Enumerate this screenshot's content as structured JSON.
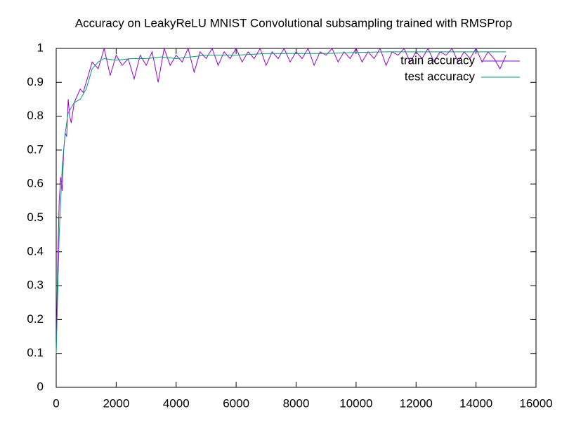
{
  "chart_data": {
    "type": "line",
    "title": "Accuracy on LeakyReLU MNIST Convolutional subsampling trained with RMSProp",
    "xlim": [
      0,
      16000
    ],
    "xticks": [
      0,
      2000,
      4000,
      6000,
      8000,
      10000,
      12000,
      14000,
      16000
    ],
    "ylim": [
      0,
      1
    ],
    "yticks": [
      0,
      0.1,
      0.2,
      0.3,
      0.4,
      0.5,
      0.6,
      0.7,
      0.8,
      0.9,
      1
    ],
    "grid": false,
    "legend": "top-right",
    "series": [
      {
        "name": "train accuracy",
        "color": "#9400d3",
        "x": [
          0,
          50,
          100,
          150,
          200,
          250,
          300,
          350,
          400,
          450,
          500,
          600,
          700,
          800,
          900,
          1000,
          1200,
          1400,
          1600,
          1800,
          2000,
          2200,
          2400,
          2600,
          2800,
          3000,
          3200,
          3400,
          3600,
          3800,
          4000,
          4200,
          4400,
          4600,
          4800,
          5000,
          5200,
          5400,
          5600,
          5800,
          6000,
          6200,
          6400,
          6600,
          6800,
          7000,
          7200,
          7400,
          7600,
          7800,
          8000,
          8200,
          8400,
          8600,
          8800,
          9000,
          9200,
          9400,
          9600,
          9800,
          10000,
          10200,
          10400,
          10600,
          10800,
          11000,
          11200,
          11400,
          11600,
          11800,
          12000,
          12200,
          12400,
          12600,
          12800,
          13000,
          13200,
          13400,
          13600,
          13800,
          14000,
          14200,
          14400,
          14600,
          14800,
          15000
        ],
        "values": [
          0.1,
          0.37,
          0.55,
          0.62,
          0.58,
          0.7,
          0.75,
          0.74,
          0.85,
          0.8,
          0.78,
          0.84,
          0.86,
          0.88,
          0.87,
          0.9,
          0.96,
          0.94,
          1,
          0.92,
          0.98,
          0.95,
          0.97,
          0.91,
          0.98,
          0.95,
          0.99,
          0.9,
          1,
          0.95,
          0.98,
          0.96,
          1,
          0.93,
          0.99,
          0.97,
          1,
          0.95,
          0.99,
          0.97,
          1,
          0.96,
          0.99,
          0.97,
          1,
          0.95,
          0.99,
          0.97,
          1,
          0.96,
          0.99,
          0.97,
          1,
          0.95,
          0.99,
          0.98,
          1,
          0.96,
          0.99,
          0.97,
          1,
          0.96,
          0.99,
          0.97,
          1,
          0.95,
          0.99,
          0.98,
          1,
          0.96,
          0.99,
          0.97,
          1,
          0.96,
          0.99,
          0.98,
          1,
          0.96,
          0.99,
          0.97,
          1,
          0.96,
          0.99,
          0.97,
          0.94,
          0.98
        ]
      },
      {
        "name": "test accuracy",
        "color": "#009e73",
        "x": [
          0,
          100,
          200,
          300,
          400,
          600,
          800,
          1000,
          1200,
          1400,
          1600,
          2000,
          2500,
          3000,
          3500,
          4000,
          5000,
          6000,
          7000,
          8000,
          9000,
          10000,
          11000,
          12000,
          13000,
          14000,
          15000
        ],
        "values": [
          0.1,
          0.45,
          0.65,
          0.75,
          0.81,
          0.84,
          0.85,
          0.88,
          0.94,
          0.96,
          0.97,
          0.965,
          0.97,
          0.97,
          0.975,
          0.97,
          0.98,
          0.98,
          0.985,
          0.985,
          0.985,
          0.988,
          0.99,
          0.99,
          0.99,
          0.99,
          0.99
        ]
      }
    ]
  }
}
